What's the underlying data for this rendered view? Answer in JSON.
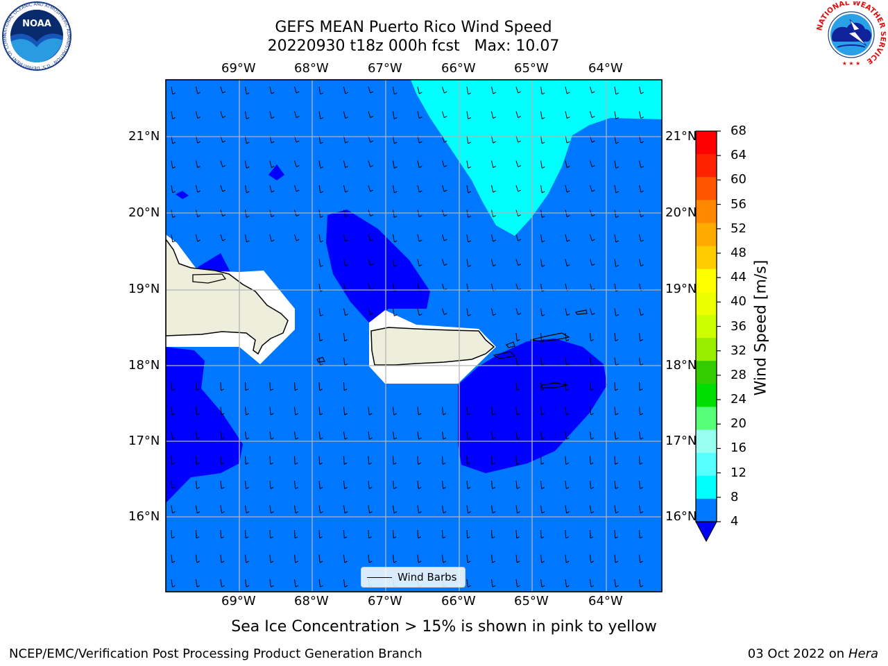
{
  "title": {
    "line1": "GEFS MEAN Puerto Rico Wind Speed",
    "line2": "20220930 t18z 000h fcst   Max: 10.07"
  },
  "axes": {
    "lon_labels": [
      "69°W",
      "68°W",
      "67°W",
      "66°W",
      "65°W",
      "64°W"
    ],
    "lat_labels": [
      "21°N",
      "20°N",
      "19°N",
      "18°N",
      "17°N",
      "16°N"
    ],
    "lon_range": [
      -70.0,
      -63.25
    ],
    "lat_range": [
      15.0,
      21.75
    ]
  },
  "legend": {
    "label": "Wind Barbs"
  },
  "colorbar": {
    "title": "Wind Speed [m/s]",
    "ticks": [
      "68",
      "64",
      "60",
      "56",
      "52",
      "48",
      "44",
      "40",
      "36",
      "32",
      "28",
      "24",
      "20",
      "16",
      "12",
      "8",
      "4"
    ],
    "colors": [
      "#ff0000",
      "#ff2200",
      "#ff5500",
      "#ff8800",
      "#ffaa00",
      "#ffcc00",
      "#ffff00",
      "#eeff00",
      "#ccff00",
      "#99ee00",
      "#33cc00",
      "#00dd00",
      "#55ff77",
      "#99ffee",
      "#55ffff",
      "#00ffff",
      "#0077ff"
    ],
    "under_color": "#0000ff"
  },
  "field_colors": {
    "ocean_4_8": "#0077ff",
    "below_4": "#0000ff",
    "wind_8_12": "#00ffff",
    "land": "#eeeedd",
    "no_data": "#ffffff"
  },
  "caption": "Sea Ice Concentration > 15% is shown in pink to yellow",
  "footer": {
    "left": "NCEP/EMC/Verification Post Processing Product Generation Branch",
    "right_date": "03 Oct 2022 on",
    "right_host": "Hera"
  },
  "logos": {
    "noaa": {
      "text": "NOAA",
      "ring_text": "NATIONAL OCEANIC AND ATMOSPHERIC ADMINISTRATION · U.S. DEPARTMENT OF COMMERCE"
    },
    "nws": {
      "ring_text": "NATIONAL WEATHER SERVICE"
    }
  }
}
